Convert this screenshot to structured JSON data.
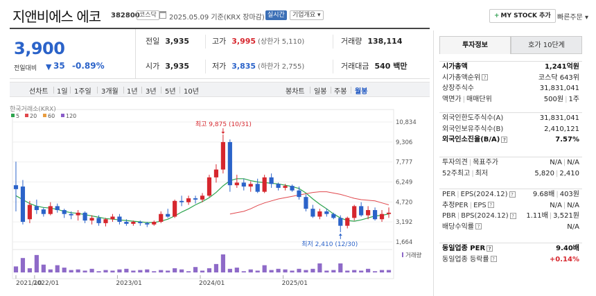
{
  "header": {
    "name": "지앤비에스 에코",
    "code": "382800",
    "market_badge": "코스닥",
    "date_info": "2025.05.09 기준(KRX 장마감)",
    "realtime_badge": "실시간",
    "overview_button": "기업개요",
    "mystock_button": "MY STOCK 추가",
    "quick_order": "빠른주문"
  },
  "quote": {
    "price": "3,900",
    "change_label": "전일대비",
    "change_arrow": "▼",
    "change_abs": "35",
    "change_pct": "-0.89%",
    "prev_close_label": "전일",
    "prev_close": "3,935",
    "high_label": "고가",
    "high": "3,995",
    "upper_limit": "(상한가 5,110)",
    "volume_label": "거래량",
    "volume": "138,114",
    "open_label": "시가",
    "open": "3,935",
    "low_label": "저가",
    "low": "3,835",
    "lower_limit": "(하한가 2,755)",
    "amount_label": "거래대금",
    "amount": "540 백만"
  },
  "toolbar": {
    "line_chart": "선차트",
    "periods": [
      "1일",
      "1주일",
      "3개월",
      "1년",
      "3년",
      "5년",
      "10년"
    ],
    "candle_chart": "봉차트",
    "candle_periods": [
      "일봉",
      "주봉",
      "월봉"
    ],
    "selected_candle": "월봉"
  },
  "chart": {
    "source": "한국거래소(KRX)",
    "legend": [
      {
        "label": "5",
        "color": "#2da44e"
      },
      {
        "label": "20",
        "color": "#e0474c"
      },
      {
        "label": "60",
        "color": "#e89c3f"
      },
      {
        "label": "120",
        "color": "#8a5cc9"
      }
    ],
    "volume_label": "거래량",
    "high_annotation": "최고 9,875 (10/31)",
    "low_annotation": "최저 2,410 (12/30)",
    "y_ticks": [
      "10,834",
      "9,306",
      "7,777",
      "6,249",
      "4,720",
      "3,192",
      "1,664"
    ],
    "x_ticks": [
      "2021/10",
      "2022/01",
      "2023/01",
      "2024/01",
      "2025/01"
    ],
    "up_color": "#d6262d",
    "down_color": "#2b63c9"
  },
  "chart_data": {
    "type": "candlestick",
    "title": "",
    "interval": "월봉",
    "ylim": [
      1664,
      10834
    ],
    "y_ticks": [
      10834,
      9306,
      7777,
      6249,
      4720,
      3192,
      1664
    ],
    "candles": [
      [
        6000,
        7800,
        4000,
        5700
      ],
      [
        5900,
        6400,
        3000,
        3200
      ],
      [
        3400,
        4800,
        3100,
        4500
      ],
      [
        4400,
        4900,
        3800,
        4100
      ],
      [
        4150,
        4300,
        3600,
        3800
      ],
      [
        3800,
        4700,
        3700,
        4400
      ],
      [
        4400,
        4600,
        3900,
        4100
      ],
      [
        4100,
        4200,
        3500,
        3800
      ],
      [
        3800,
        4000,
        3400,
        3700
      ],
      [
        3700,
        4100,
        3300,
        3900
      ],
      [
        3900,
        4000,
        3100,
        3300
      ],
      [
        3300,
        3700,
        3000,
        3500
      ],
      [
        3500,
        3700,
        2900,
        3100
      ],
      [
        3100,
        3500,
        2850,
        3400
      ],
      [
        3400,
        3800,
        3200,
        3600
      ],
      [
        3600,
        3800,
        3000,
        3200
      ],
      [
        3200,
        3400,
        2900,
        3050
      ],
      [
        3050,
        3300,
        2900,
        3200
      ],
      [
        3200,
        3300,
        2900,
        3100
      ],
      [
        3100,
        3200,
        2800,
        3000
      ],
      [
        3000,
        3300,
        2900,
        3200
      ],
      [
        3200,
        4000,
        3100,
        3800
      ],
      [
        3800,
        4200,
        3500,
        3600
      ],
      [
        3600,
        4900,
        3500,
        4800
      ],
      [
        4800,
        5200,
        4400,
        4700
      ],
      [
        4700,
        5200,
        4500,
        5000
      ],
      [
        5000,
        5200,
        4600,
        4900
      ],
      [
        4900,
        5400,
        4700,
        5200
      ],
      [
        5200,
        6800,
        5100,
        6600
      ],
      [
        6600,
        7600,
        6200,
        7200
      ],
      [
        7200,
        9875,
        6900,
        9300
      ],
      [
        9300,
        9500,
        5500,
        6000
      ],
      [
        6000,
        6800,
        5800,
        6200
      ],
      [
        6200,
        6500,
        5600,
        5900
      ],
      [
        5900,
        6300,
        5500,
        6100
      ],
      [
        6100,
        6500,
        5400,
        5500
      ],
      [
        5500,
        6800,
        5400,
        6600
      ],
      [
        6600,
        6900,
        5800,
        6100
      ],
      [
        6100,
        6200,
        5600,
        5800
      ],
      [
        5800,
        6100,
        5600,
        5950
      ],
      [
        5950,
        6050,
        5500,
        5600
      ],
      [
        5600,
        5900,
        4900,
        5100
      ],
      [
        5100,
        5300,
        4000,
        4200
      ],
      [
        4200,
        4500,
        3500,
        3600
      ],
      [
        3600,
        4200,
        3400,
        4000
      ],
      [
        4000,
        4200,
        3600,
        3800
      ],
      [
        3800,
        3900,
        3400,
        3500
      ],
      [
        3500,
        3700,
        2410,
        2900
      ],
      [
        2900,
        3600,
        2700,
        3500
      ],
      [
        3500,
        4500,
        3300,
        4400
      ],
      [
        4400,
        4700,
        3600,
        3700
      ],
      [
        3700,
        4400,
        3400,
        4100
      ],
      [
        4100,
        4300,
        3300,
        3400
      ],
      [
        3400,
        4100,
        3200,
        3800
      ],
      [
        3800,
        4300,
        3500,
        3900
      ]
    ],
    "volume": [
      10,
      24,
      7,
      29,
      13,
      5,
      12,
      8,
      4,
      5,
      3,
      6,
      2,
      4,
      3,
      5,
      6,
      3,
      4,
      5,
      2,
      4,
      3,
      7,
      5,
      2,
      9,
      3,
      7,
      14,
      30,
      6,
      8,
      2,
      5,
      3,
      12,
      4,
      6,
      5,
      3,
      6,
      4,
      6,
      15,
      3,
      4,
      15,
      3,
      4,
      3,
      6,
      2,
      4,
      4
    ],
    "ma5": [
      5200,
      4900,
      4600,
      4400,
      4300,
      4250,
      4150,
      4000,
      3900,
      3850,
      3750,
      3650,
      3550,
      3450,
      3400,
      3350,
      3300,
      3250,
      3200,
      3150,
      3150,
      3250,
      3400,
      3650,
      3950,
      4200,
      4500,
      4750,
      5050,
      5450,
      5950,
      6350,
      6500,
      6500,
      6350,
      6250,
      6200,
      6150,
      6100,
      6000,
      5900,
      5750,
      5400,
      4950,
      4550,
      4200,
      3800,
      3500,
      3300,
      3250,
      3350,
      3500,
      3650,
      3700,
      3800
    ],
    "ma20": [
      null,
      null,
      null,
      null,
      null,
      null,
      null,
      null,
      null,
      null,
      null,
      null,
      null,
      null,
      null,
      null,
      null,
      null,
      null,
      null,
      null,
      null,
      null,
      null,
      null,
      null,
      null,
      null,
      null,
      null,
      null,
      null,
      null,
      null,
      null,
      null,
      null,
      null,
      null,
      null,
      null,
      null,
      null,
      null,
      null,
      null,
      null,
      null,
      null,
      null,
      null,
      null,
      null,
      null,
      null
    ],
    "ma20_series": [
      3800,
      3900,
      4000,
      4200,
      4450,
      4650,
      4800,
      4950,
      5050,
      5150,
      5250,
      5350,
      5450,
      5500,
      5500,
      5400,
      5300,
      5150,
      5000,
      4900,
      4850,
      4800,
      4650,
      4500
    ]
  }
}
